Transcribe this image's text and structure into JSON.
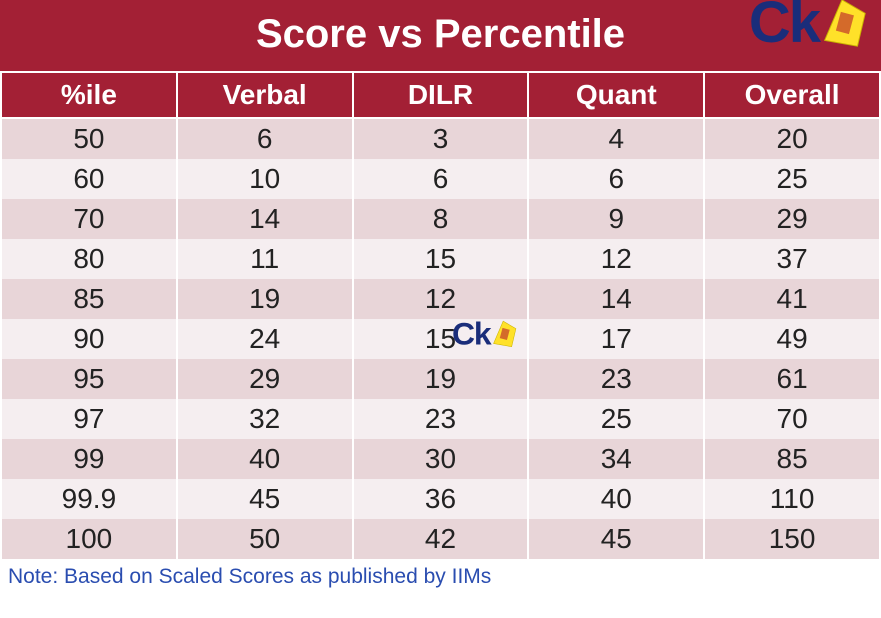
{
  "title": "Score vs Percentile",
  "logo_text": "Ck",
  "table": {
    "columns": [
      "%ile",
      "Verbal",
      "DILR",
      "Quant",
      "Overall"
    ],
    "rows": [
      [
        "50",
        "6",
        "3",
        "4",
        "20"
      ],
      [
        "60",
        "10",
        "6",
        "6",
        "25"
      ],
      [
        "70",
        "14",
        "8",
        "9",
        "29"
      ],
      [
        "80",
        "11",
        "15",
        "12",
        "37"
      ],
      [
        "85",
        "19",
        "12",
        "14",
        "41"
      ],
      [
        "90",
        "24",
        "15",
        "17",
        "49"
      ],
      [
        "95",
        "29",
        "19",
        "23",
        "61"
      ],
      [
        "97",
        "32",
        "23",
        "25",
        "70"
      ],
      [
        "99",
        "40",
        "30",
        "34",
        "85"
      ],
      [
        "99.9",
        "45",
        "36",
        "40",
        "110"
      ],
      [
        "100",
        "50",
        "42",
        "45",
        "150"
      ]
    ],
    "header_bg": "#a32035",
    "header_fg": "#ffffff",
    "row_odd_bg": "#e8d5d8",
    "row_even_bg": "#f5eef0",
    "cell_fg": "#222222",
    "header_fontsize": 28,
    "cell_fontsize": 28
  },
  "footnote": "Note: Based on Scaled Scores as published by IIMs",
  "footnote_color": "#2a4db0",
  "logo_colors": {
    "text": "#1a2d7a",
    "shape_fill": "#ffe129",
    "shape_accent": "#d46a2a"
  }
}
